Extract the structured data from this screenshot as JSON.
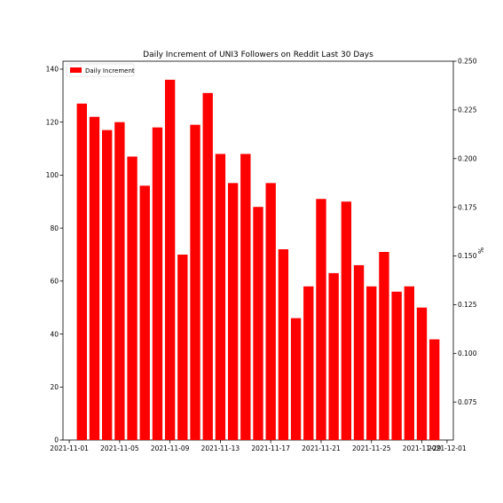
{
  "chart_data": {
    "type": "bar",
    "title": "Daily Increment of UNI3 Followers on Reddit Last 30 Days",
    "xlabel": "",
    "ylabel": "",
    "y2label": "%",
    "series": [
      {
        "name": "Daily Increment",
        "color": "#ff0000",
        "x": [
          "2021-11-02",
          "2021-11-03",
          "2021-11-04",
          "2021-11-05",
          "2021-11-06",
          "2021-11-07",
          "2021-11-08",
          "2021-11-09",
          "2021-11-10",
          "2021-11-11",
          "2021-11-12",
          "2021-11-13",
          "2021-11-14",
          "2021-11-15",
          "2021-11-16",
          "2021-11-17",
          "2021-11-18",
          "2021-11-19",
          "2021-11-20",
          "2021-11-21",
          "2021-11-22",
          "2021-11-23",
          "2021-11-24",
          "2021-11-25",
          "2021-11-26",
          "2021-11-27",
          "2021-11-28",
          "2021-11-29",
          "2021-11-30"
        ],
        "values": [
          127,
          122,
          117,
          120,
          107,
          96,
          118,
          136,
          70,
          119,
          131,
          108,
          97,
          108,
          88,
          97,
          72,
          46,
          58,
          91,
          63,
          90,
          66,
          58,
          71,
          56,
          58,
          50,
          38
        ]
      }
    ],
    "ylim": [
      0,
      143
    ],
    "y2lim": [
      0.0555,
      0.25
    ],
    "xlim": [
      "2021-10-31T12:00",
      "2021-12-01T12:00"
    ],
    "x_ticks": [
      "2021-11-01",
      "2021-11-05",
      "2021-11-09",
      "2021-11-13",
      "2021-11-17",
      "2021-11-21",
      "2021-11-25",
      "2021-11-29",
      "2021-12-01"
    ],
    "y_ticks": [
      "0",
      "20",
      "40",
      "60",
      "80",
      "100",
      "120",
      "140"
    ],
    "y2_ticks": [
      "0.075",
      "0.100",
      "0.125",
      "0.150",
      "0.175",
      "0.200",
      "0.225",
      "0.250"
    ],
    "legend_position": "top-left",
    "grid": false
  }
}
